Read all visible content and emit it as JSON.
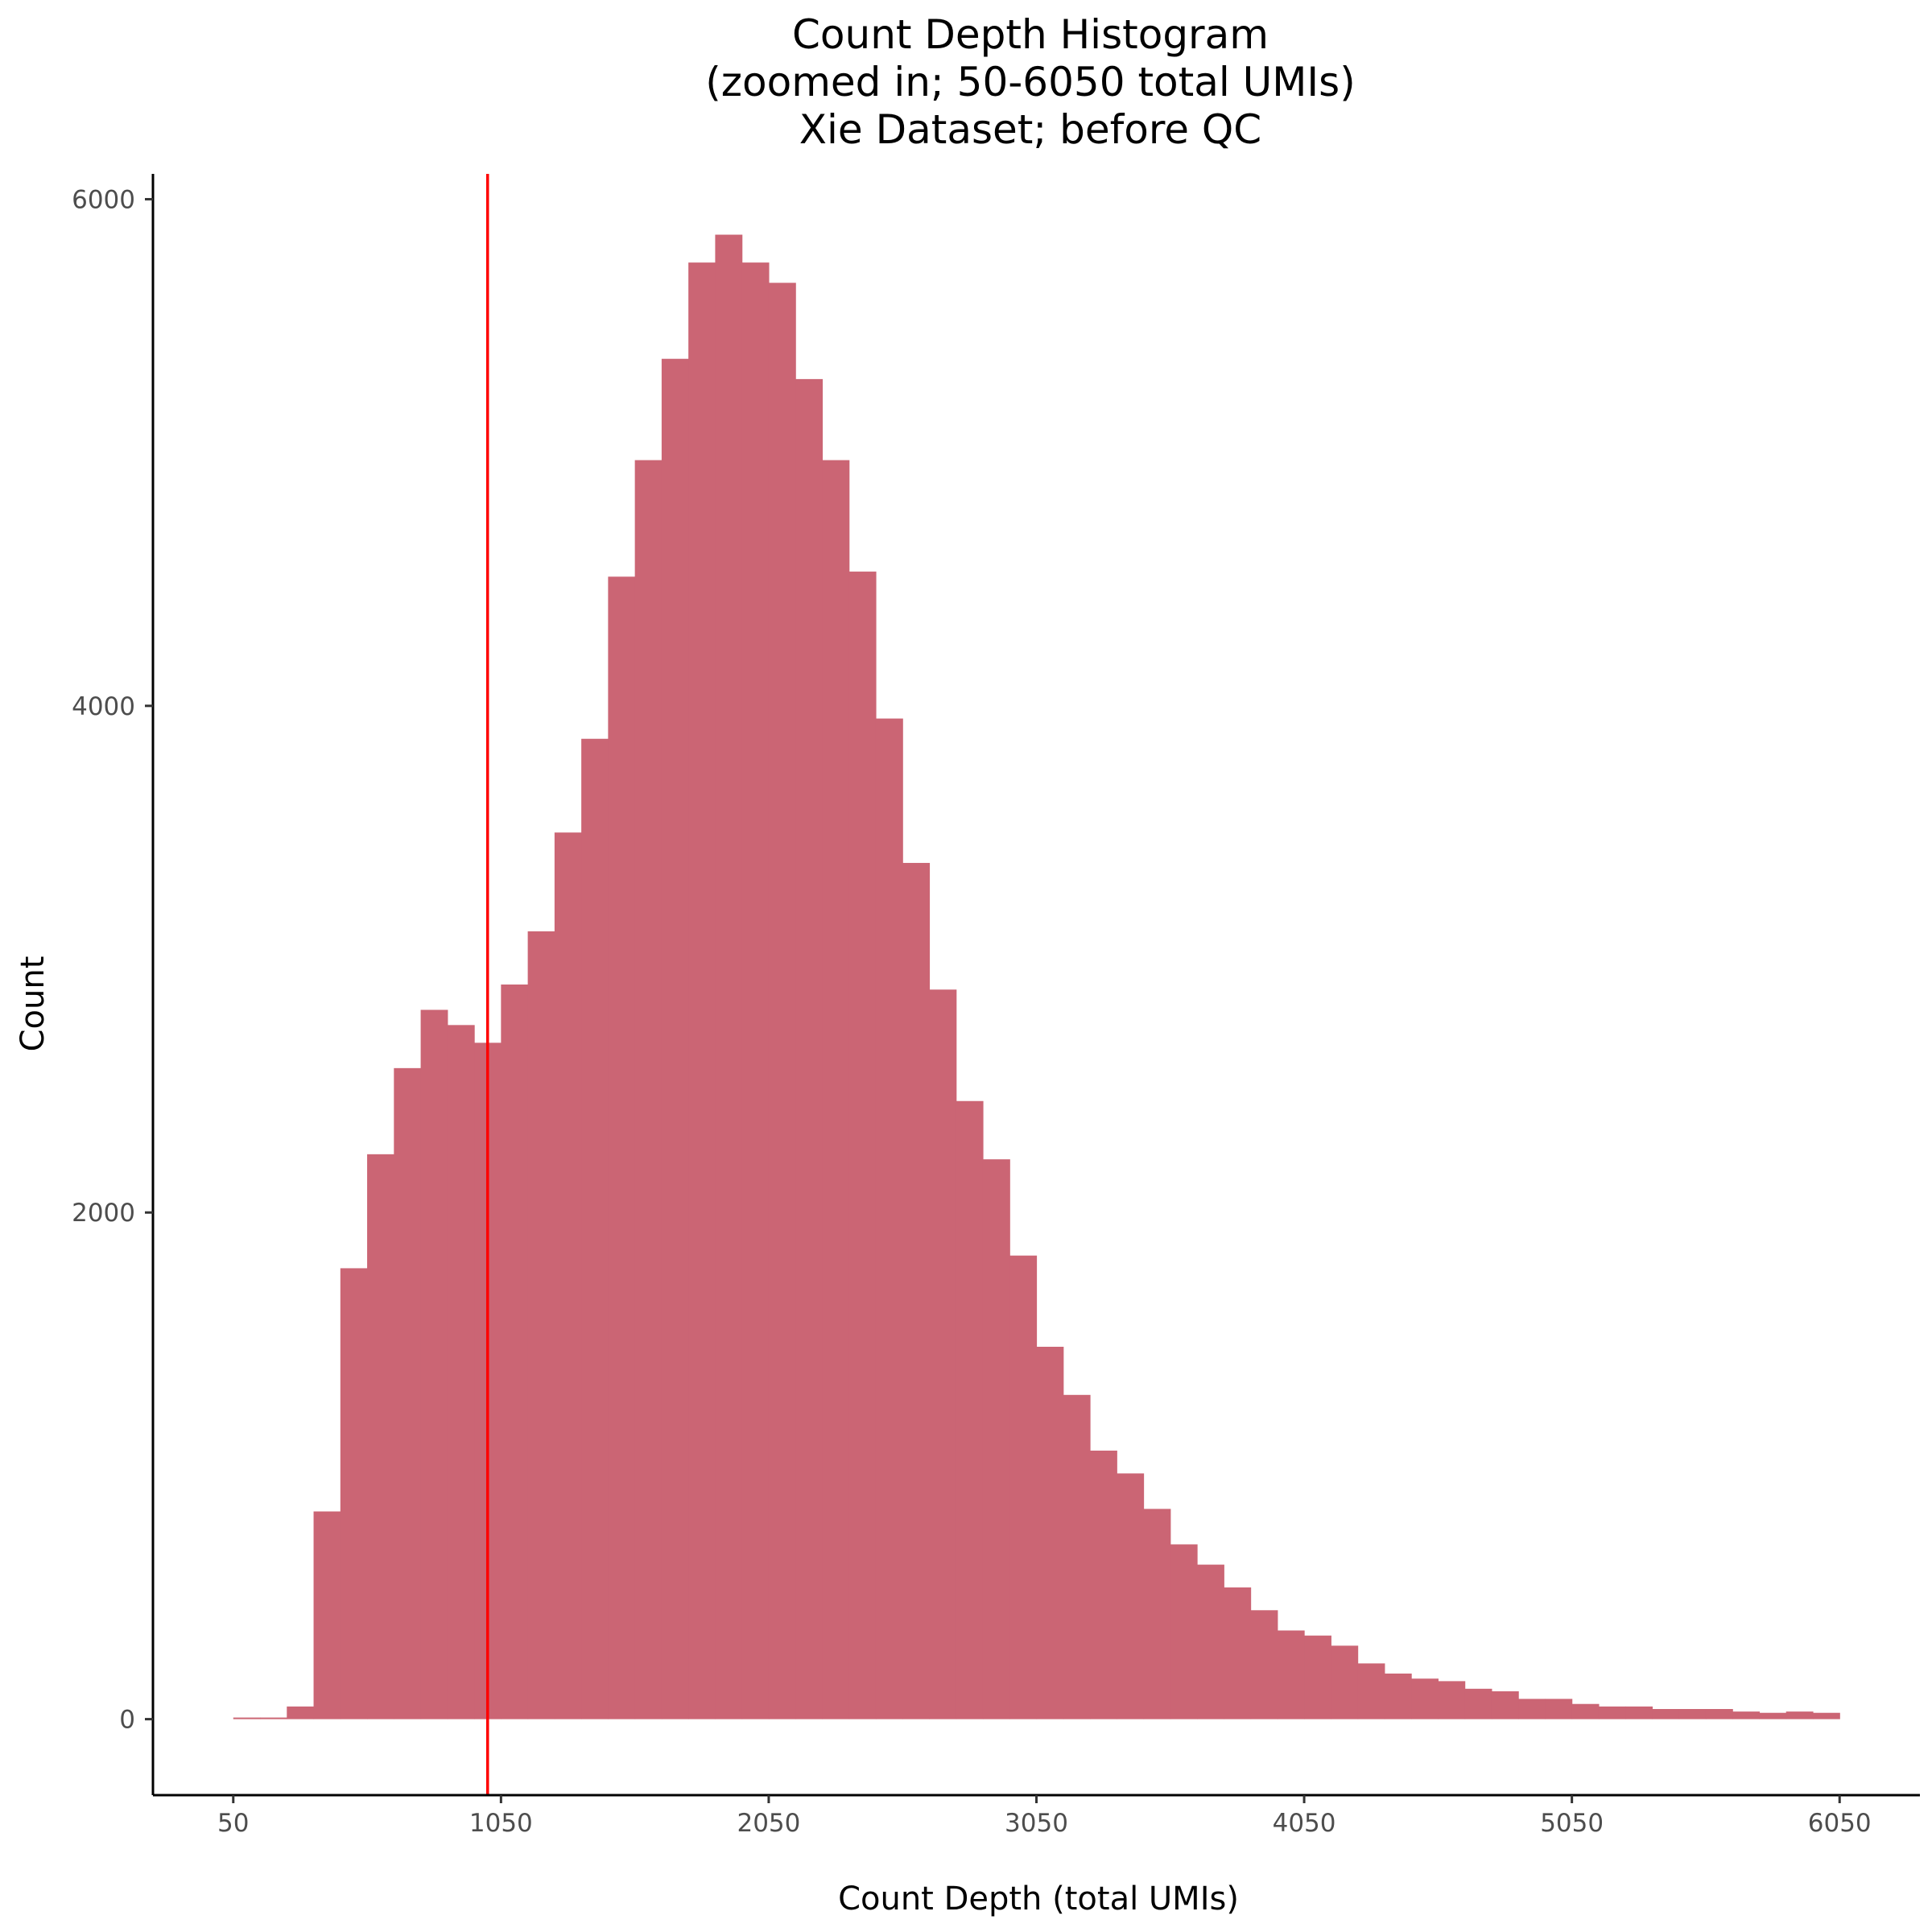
{
  "chart_data": {
    "type": "bar",
    "title": [
      "Count Depth Histogram",
      "(zoomed in; 50-6050 total UMIs)",
      "Xie Dataset; before QC"
    ],
    "xlabel": "Count Depth (total UMIs)",
    "ylabel": "Count",
    "xlim": [
      -250,
      6350
    ],
    "ylim": [
      -300,
      6100
    ],
    "xticks": [
      50,
      1050,
      2050,
      3050,
      4050,
      5050,
      6050
    ],
    "xtick_labels": [
      "50",
      "1050",
      "2050",
      "3050",
      "4050",
      "5050",
      "6050"
    ],
    "yticks": [
      0,
      2000,
      4000,
      6000
    ],
    "ytick_labels": [
      "0",
      "2000",
      "4000",
      "6000"
    ],
    "bin_width": 100,
    "bin_start": 50,
    "values": [
      5,
      5,
      50,
      820,
      1780,
      2230,
      2570,
      2800,
      2740,
      2670,
      2900,
      3110,
      3500,
      3870,
      4510,
      4970,
      5370,
      5750,
      5860,
      5750,
      5670,
      5290,
      4970,
      4530,
      3950,
      3380,
      2880,
      2440,
      2210,
      1830,
      1470,
      1280,
      1060,
      970,
      830,
      690,
      610,
      520,
      430,
      350,
      330,
      290,
      220,
      180,
      160,
      150,
      120,
      110,
      80,
      80,
      60,
      50,
      50,
      40,
      40,
      40,
      30,
      25,
      30,
      25
    ],
    "vline": 1000,
    "bar_color": "#cb6574",
    "vline_color": "#ff0000",
    "grid": false,
    "legend": "none"
  }
}
